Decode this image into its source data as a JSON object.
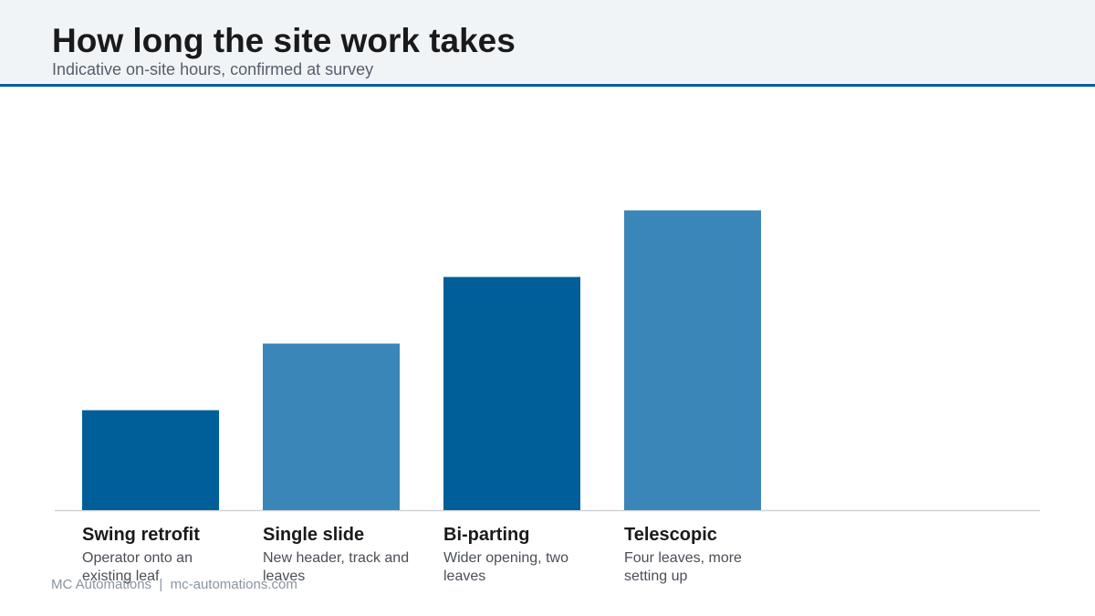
{
  "chart_data": {
    "type": "bar",
    "title": "How long the site work takes",
    "subtitle": "Indicative on-site hours, confirmed at survey",
    "categories": [
      "Swing retrofit",
      "Single slide",
      "Bi-parting",
      "Telescopic"
    ],
    "descriptions": [
      "Operator onto an existing leaf",
      "New header, track and leaves",
      "Wider opening, two leaves",
      "Four leaves, more setting up"
    ],
    "values": [
      1.5,
      2.5,
      3.5,
      4.5
    ],
    "colors": [
      "#005f99",
      "#3a86b8",
      "#005f99",
      "#3a86b8"
    ],
    "ylim": [
      0,
      6
    ],
    "footer": "MC Automations  |  mc-automations.com"
  }
}
